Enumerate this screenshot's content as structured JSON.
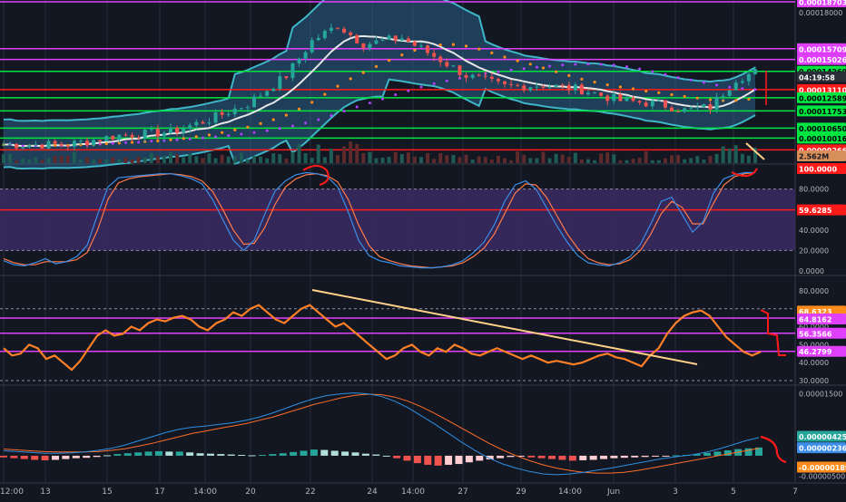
{
  "colors": {
    "background": "#131722",
    "grid": "#2a2e39",
    "axis_text": "#b2b5be",
    "magenta": "#e040fb",
    "green": "#00e640",
    "red": "#ff1a1a",
    "orange": "#ff8c1a",
    "bull": "#26a69a",
    "bear": "#ef5350",
    "band_fill": "#2f6e9e",
    "band_line": "#3fb6c8",
    "stoch_k": "#3c8de6",
    "stoch_d": "#ff7b4a",
    "stoch_band": "#3b2a63",
    "rsi_line": "#ff7f27",
    "trendline": "#ffd28a",
    "macd_line": "#2f8fe0",
    "signal_line": "#ff6d2a"
  },
  "chart_data": [
    {
      "type": "candlestick",
      "panel": "price",
      "indicators": [
        "Bollinger Bands",
        "moving averages",
        "volume"
      ],
      "ylim": [
        9e-05,
        0.000187
      ],
      "price_levels": [
        {
          "label": "0.00018703",
          "value": 0.00018703,
          "color": "magenta"
        },
        {
          "label": "0.00018000",
          "value": 0.00018,
          "color": "axis"
        },
        {
          "label": "0.00015709",
          "value": 0.00015709,
          "color": "magenta"
        },
        {
          "label": "0.00015026",
          "value": 0.00015026,
          "color": "magenta"
        },
        {
          "label": "0.00014269",
          "value": 0.00014269,
          "color": "green"
        },
        {
          "label": "04:19:58",
          "value": 0.0001392,
          "color": "dark"
        },
        {
          "label": "0.00013110",
          "value": 0.0001311,
          "color": "red"
        },
        {
          "label": "0.00012589",
          "value": 0.00012589,
          "color": "green"
        },
        {
          "label": "0.00011753",
          "value": 0.00011753,
          "color": "green"
        },
        {
          "label": "0.00010650",
          "value": 0.0001065,
          "color": "green"
        },
        {
          "label": "0.00010016",
          "value": 0.00010016,
          "color": "green"
        },
        {
          "label": "0.00009266",
          "value": 9.266e-05,
          "color": "red"
        }
      ],
      "volume_label": "2.562M"
    },
    {
      "type": "line",
      "panel": "stochastic",
      "ylim": [
        0,
        100
      ],
      "ticks": [
        "100.0000",
        "80.0000",
        "40.0000",
        "20.0000",
        "0.0000"
      ],
      "tick_values": [
        100,
        80,
        40,
        20,
        0
      ],
      "level_label": "59.6285",
      "level_value": 59.6285,
      "top_badge": "100.0000",
      "band": [
        20,
        80
      ],
      "series": [
        {
          "values": [
            10,
            6,
            5,
            8,
            12,
            7,
            9,
            14,
            25,
            55,
            82,
            91,
            92,
            93,
            94,
            95,
            95,
            93,
            90,
            85,
            70,
            50,
            30,
            20,
            30,
            55,
            78,
            88,
            94,
            96,
            95,
            92,
            82,
            58,
            30,
            15,
            10,
            8,
            5,
            4,
            3,
            3,
            4,
            6,
            10,
            18,
            28,
            45,
            68,
            84,
            88,
            80,
            62,
            44,
            28,
            15,
            8,
            6,
            5,
            8,
            14,
            26,
            46,
            68,
            72,
            55,
            38,
            48,
            76,
            90,
            94,
            96,
            96
          ]
        },
        {
          "values": [
            12,
            8,
            6,
            6,
            9,
            9,
            9,
            11,
            18,
            40,
            70,
            86,
            90,
            92,
            93,
            94,
            95,
            94,
            92,
            88,
            78,
            60,
            40,
            26,
            27,
            42,
            65,
            82,
            90,
            94,
            95,
            93,
            87,
            70,
            45,
            25,
            14,
            10,
            7,
            5,
            4,
            3,
            4,
            5,
            8,
            14,
            22,
            36,
            56,
            76,
            85,
            84,
            72,
            54,
            36,
            22,
            12,
            8,
            6,
            7,
            11,
            20,
            36,
            56,
            68,
            62,
            46,
            46,
            66,
            84,
            92,
            95,
            96
          ]
        }
      ]
    },
    {
      "type": "line",
      "panel": "rsi",
      "ylim": [
        28,
        88
      ],
      "ticks": [
        "80.0000",
        "60.0000",
        "50.0000",
        "40.0000",
        "30.0000"
      ],
      "tick_values": [
        80,
        60,
        50,
        40,
        30
      ],
      "level_labels": [
        "68.6323",
        "64.8162",
        "56.3566",
        "46.2799"
      ],
      "level_values": [
        68.6323,
        64.8162,
        56.3566,
        46.2799
      ],
      "series": [
        {
          "values": [
            48,
            44,
            45,
            50,
            48,
            42,
            44,
            40,
            36,
            41,
            48,
            55,
            58,
            55,
            56,
            60,
            58,
            62,
            64,
            63,
            65,
            66,
            64,
            60,
            58,
            62,
            64,
            68,
            66,
            70,
            72,
            68,
            64,
            62,
            66,
            70,
            72,
            68,
            64,
            60,
            62,
            58,
            54,
            50,
            46,
            42,
            44,
            48,
            50,
            46,
            44,
            48,
            46,
            50,
            48,
            45,
            44,
            46,
            48,
            46,
            44,
            42,
            44,
            42,
            40,
            41,
            40,
            39,
            40,
            42,
            44,
            45,
            43,
            42,
            40,
            38,
            44,
            48,
            56,
            62,
            66,
            68,
            69,
            66,
            60,
            54,
            50,
            46,
            44,
            46
          ]
        }
      ]
    },
    {
      "type": "bar",
      "panel": "macd",
      "ylim": [
        -5.5e-06,
        1.6e-05
      ],
      "ticks": [
        "0.00001500",
        "0.00000500",
        "-0.00000500"
      ],
      "tick_values": [
        1.5e-05,
        5e-06,
        -5e-06
      ],
      "value_labels": [
        "0.00000425",
        "0.00000236",
        "-0.00000189"
      ],
      "value_values": [
        4.25e-06,
        2.36e-06,
        -1.89e-06
      ],
      "histogram": [
        -0.4,
        -0.6,
        -0.8,
        -1.0,
        -1.1,
        -1.0,
        -0.8,
        -0.6,
        -0.5,
        -0.3,
        0.1,
        0.4,
        0.6,
        0.8,
        1.0,
        1.1,
        1.0,
        1.0,
        0.8,
        0.6,
        0.5,
        0.4,
        0.3,
        0.2,
        0.1,
        0.2,
        0.4,
        0.6,
        0.9,
        1.2,
        1.5,
        1.4,
        1.2,
        1.0,
        0.8,
        0.5,
        0.3,
        0.0,
        -0.6,
        -1.2,
        -1.8,
        -2.2,
        -2.4,
        -2.2,
        -2.0,
        -1.6,
        -1.2,
        -0.9,
        -0.6,
        -0.3,
        -0.2,
        -0.4,
        -0.6,
        -0.8,
        -1.0,
        -1.2,
        -1.1,
        -1.0,
        -0.8,
        -0.6,
        -0.5,
        -0.4,
        -0.3,
        -0.2,
        -0.1,
        0.1,
        0.2,
        0.4,
        0.7,
        1.0,
        1.3,
        1.6,
        1.8,
        2.0
      ],
      "series": [
        {
          "values": [
            1.2,
            1.0,
            0.8,
            0.6,
            0.6,
            0.7,
            0.9,
            1.3,
            1.8,
            2.6,
            3.6,
            4.6,
            5.6,
            6.4,
            6.9,
            7.2,
            7.6,
            8.0,
            8.6,
            9.4,
            10.4,
            11.6,
            12.8,
            13.8,
            14.6,
            15.0,
            15.2,
            15.0,
            14.4,
            13.2,
            11.6,
            9.6,
            7.6,
            5.4,
            3.2,
            1.2,
            -0.6,
            -2.0,
            -3.0,
            -3.8,
            -4.4,
            -4.6,
            -4.4,
            -4.0,
            -3.5,
            -3.0,
            -2.4,
            -1.8,
            -1.2,
            -0.6,
            -0.2,
            0.2,
            0.8,
            1.6,
            2.6,
            3.6,
            4.4
          ]
        },
        {
          "values": [
            1.6,
            1.4,
            1.2,
            1.0,
            0.9,
            0.9,
            0.9,
            1.0,
            1.3,
            1.7,
            2.3,
            3.0,
            3.8,
            4.6,
            5.4,
            6.0,
            6.6,
            7.2,
            7.8,
            8.6,
            9.4,
            10.4,
            11.4,
            12.4,
            13.2,
            14.0,
            14.6,
            14.9,
            14.8,
            14.2,
            13.2,
            11.8,
            10.2,
            8.4,
            6.6,
            4.8,
            3.0,
            1.4,
            0.0,
            -1.2,
            -2.2,
            -3.0,
            -3.6,
            -4.0,
            -4.2,
            -4.2,
            -4.0,
            -3.6,
            -3.0,
            -2.4,
            -1.8,
            -1.2,
            -0.6,
            0.0,
            0.6,
            1.2,
            1.8
          ]
        }
      ]
    }
  ],
  "x_axis": {
    "labels": [
      "12:00",
      "13",
      "15",
      "17",
      "14:00",
      "20",
      "22",
      "24",
      "14:00",
      "27",
      "29",
      "14:00",
      "Jun",
      "3",
      "5",
      "7"
    ]
  }
}
